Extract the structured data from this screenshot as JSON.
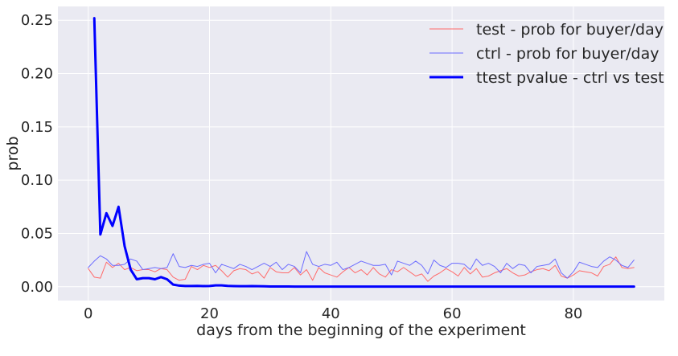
{
  "chart_data": {
    "type": "line",
    "xlabel": "days from the beginning of the experiment",
    "ylabel": "prob",
    "xlim": [
      -5,
      95
    ],
    "ylim": [
      -0.013,
      0.263
    ],
    "xticks": [
      0,
      20,
      40,
      60,
      80
    ],
    "yticks": [
      0.0,
      0.05,
      0.1,
      0.15,
      0.2,
      0.25
    ],
    "ytick_labels": [
      "0.00",
      "0.05",
      "0.10",
      "0.15",
      "0.20",
      "0.25"
    ],
    "grid": true,
    "legend_position": "top-right",
    "x": [
      0,
      1,
      2,
      3,
      4,
      5,
      6,
      7,
      8,
      9,
      10,
      11,
      12,
      13,
      14,
      15,
      16,
      17,
      18,
      19,
      20,
      21,
      22,
      23,
      24,
      25,
      26,
      27,
      28,
      29,
      30,
      31,
      32,
      33,
      34,
      35,
      36,
      37,
      38,
      39,
      40,
      41,
      42,
      43,
      44,
      45,
      46,
      47,
      48,
      49,
      50,
      51,
      52,
      53,
      54,
      55,
      56,
      57,
      58,
      59,
      60,
      61,
      62,
      63,
      64,
      65,
      66,
      67,
      68,
      69,
      70,
      71,
      72,
      73,
      74,
      75,
      76,
      77,
      78,
      79,
      80,
      81,
      82,
      83,
      84,
      85,
      86,
      87,
      88,
      89,
      90
    ],
    "series": [
      {
        "name": "test - prob for buyer/day",
        "color": "#ff6b6b",
        "width": 1,
        "values": [
          0.017,
          0.009,
          0.008,
          0.023,
          0.018,
          0.022,
          0.016,
          0.018,
          0.015,
          0.016,
          0.016,
          0.014,
          0.017,
          0.016,
          0.009,
          0.006,
          0.007,
          0.019,
          0.016,
          0.02,
          0.018,
          0.02,
          0.015,
          0.009,
          0.015,
          0.017,
          0.016,
          0.012,
          0.014,
          0.008,
          0.018,
          0.014,
          0.013,
          0.013,
          0.018,
          0.011,
          0.016,
          0.006,
          0.018,
          0.013,
          0.011,
          0.009,
          0.014,
          0.018,
          0.013,
          0.016,
          0.011,
          0.018,
          0.012,
          0.009,
          0.016,
          0.014,
          0.018,
          0.014,
          0.01,
          0.012,
          0.005,
          0.01,
          0.013,
          0.017,
          0.014,
          0.01,
          0.018,
          0.012,
          0.017,
          0.009,
          0.01,
          0.013,
          0.015,
          0.017,
          0.013,
          0.01,
          0.011,
          0.014,
          0.016,
          0.017,
          0.015,
          0.02,
          0.01,
          0.008,
          0.011,
          0.015,
          0.014,
          0.013,
          0.01,
          0.019,
          0.021,
          0.028,
          0.018,
          0.017,
          0.018
        ]
      },
      {
        "name": "ctrl - prob for buyer/day",
        "color": "#6b6bff",
        "width": 1,
        "values": [
          0.018,
          0.024,
          0.029,
          0.026,
          0.02,
          0.02,
          0.021,
          0.026,
          0.024,
          0.016,
          0.017,
          0.018,
          0.017,
          0.018,
          0.031,
          0.019,
          0.018,
          0.02,
          0.019,
          0.021,
          0.022,
          0.013,
          0.021,
          0.019,
          0.017,
          0.021,
          0.019,
          0.016,
          0.019,
          0.022,
          0.019,
          0.023,
          0.016,
          0.021,
          0.019,
          0.013,
          0.033,
          0.021,
          0.019,
          0.021,
          0.02,
          0.023,
          0.016,
          0.018,
          0.021,
          0.024,
          0.022,
          0.02,
          0.02,
          0.021,
          0.011,
          0.024,
          0.022,
          0.02,
          0.024,
          0.02,
          0.012,
          0.025,
          0.02,
          0.018,
          0.022,
          0.022,
          0.021,
          0.016,
          0.026,
          0.02,
          0.022,
          0.019,
          0.013,
          0.022,
          0.017,
          0.021,
          0.02,
          0.013,
          0.019,
          0.02,
          0.021,
          0.026,
          0.013,
          0.008,
          0.014,
          0.023,
          0.021,
          0.019,
          0.018,
          0.024,
          0.028,
          0.025,
          0.02,
          0.018,
          0.025
        ]
      },
      {
        "name": "ttest pvalue - ctrl vs test",
        "color": "#0000ff",
        "width": 3,
        "values": [
          null,
          0.252,
          0.049,
          0.069,
          0.057,
          0.075,
          0.038,
          0.016,
          0.007,
          0.008,
          0.008,
          0.007,
          0.009,
          0.007,
          0.002,
          0.001,
          0.0007,
          0.0007,
          0.0008,
          0.0006,
          0.0007,
          0.0012,
          0.0012,
          0.0008,
          0.0006,
          0.0005,
          0.0005,
          0.0006,
          0.0005,
          0.0004,
          0.0002,
          0.0002,
          0.0002,
          0.0002,
          0.0001,
          0.0001,
          0.0001,
          0.0001,
          0.0001,
          0.0001,
          0.0001,
          0.0001,
          0.0001,
          0.0001,
          0.0001,
          0.0001,
          0.0001,
          0.0001,
          0.0001,
          0.0001,
          0.0001,
          0.0001,
          0.0001,
          0.0001,
          0.0001,
          0.0001,
          0.0001,
          0.0001,
          0.0001,
          0.0001,
          0.0001,
          0.0001,
          0.0001,
          0.0001,
          0.0001,
          0.0001,
          0.0001,
          0.0001,
          0.0001,
          0.0001,
          0.0001,
          0.0001,
          0.0001,
          0.0001,
          0.0001,
          0.0001,
          0.0001,
          0.0001,
          0.0001,
          0.0001,
          0.0001,
          0.0001,
          0.0001,
          0.0001,
          0.0001,
          0.0001,
          0.0001,
          0.0001,
          0.0001,
          0.0001,
          0.0001
        ]
      }
    ]
  },
  "style": {
    "plot_background": "#eaeaf2",
    "grid_color": "#ffffff"
  }
}
